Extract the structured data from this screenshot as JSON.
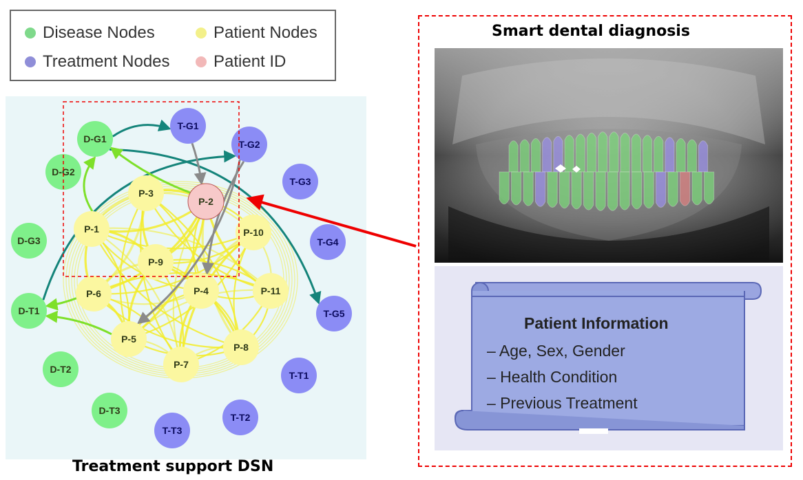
{
  "legend": {
    "items": [
      {
        "label": "Disease Nodes",
        "color": "#7fd98b"
      },
      {
        "label": "Patient Nodes",
        "color": "#f3f08a"
      },
      {
        "label": "Treatment Nodes",
        "color": "#8f8ed8"
      },
      {
        "label": "Patient ID",
        "color": "#f2b8b8"
      }
    ]
  },
  "graph": {
    "caption": "Treatment support DSN",
    "colors": {
      "disease": "#7ff08a",
      "patient": "#fbf7a0",
      "treatment": "#8b8cf5",
      "patient_id": "#f7c9c9",
      "edge_patient": "#f3ec2a",
      "edge_teal": "#14847a",
      "edge_green": "#7ee02a",
      "edge_gray": "#8a8a8a",
      "red_arrow": "#ee0000"
    },
    "nodes": [
      {
        "id": "D-G1",
        "type": "disease"
      },
      {
        "id": "D-G2",
        "type": "disease"
      },
      {
        "id": "D-G3",
        "type": "disease"
      },
      {
        "id": "D-T1",
        "type": "disease"
      },
      {
        "id": "D-T2",
        "type": "disease"
      },
      {
        "id": "D-T3",
        "type": "disease"
      },
      {
        "id": "T-G1",
        "type": "treatment"
      },
      {
        "id": "T-G2",
        "type": "treatment"
      },
      {
        "id": "T-G3",
        "type": "treatment"
      },
      {
        "id": "T-G4",
        "type": "treatment"
      },
      {
        "id": "T-G5",
        "type": "treatment"
      },
      {
        "id": "T-T1",
        "type": "treatment"
      },
      {
        "id": "T-T2",
        "type": "treatment"
      },
      {
        "id": "T-T3",
        "type": "treatment"
      },
      {
        "id": "P-1",
        "type": "patient"
      },
      {
        "id": "P-2",
        "type": "patient_id"
      },
      {
        "id": "P-3",
        "type": "patient"
      },
      {
        "id": "P-4",
        "type": "patient"
      },
      {
        "id": "P-5",
        "type": "patient"
      },
      {
        "id": "P-6",
        "type": "patient"
      },
      {
        "id": "P-7",
        "type": "patient"
      },
      {
        "id": "P-8",
        "type": "patient"
      },
      {
        "id": "P-9",
        "type": "patient"
      },
      {
        "id": "P-10",
        "type": "patient"
      },
      {
        "id": "P-11",
        "type": "patient"
      }
    ]
  },
  "diagnosis": {
    "title": "Smart dental diagnosis",
    "tooth_colors": {
      "healthy": "#7bd67a",
      "treated": "#9a8fe6",
      "disease": "#d98080"
    }
  },
  "patient_info": {
    "title": "Patient Information",
    "items": [
      "– Age, Sex, Gender",
      "– Health Condition",
      "– Previous Treatment"
    ]
  }
}
